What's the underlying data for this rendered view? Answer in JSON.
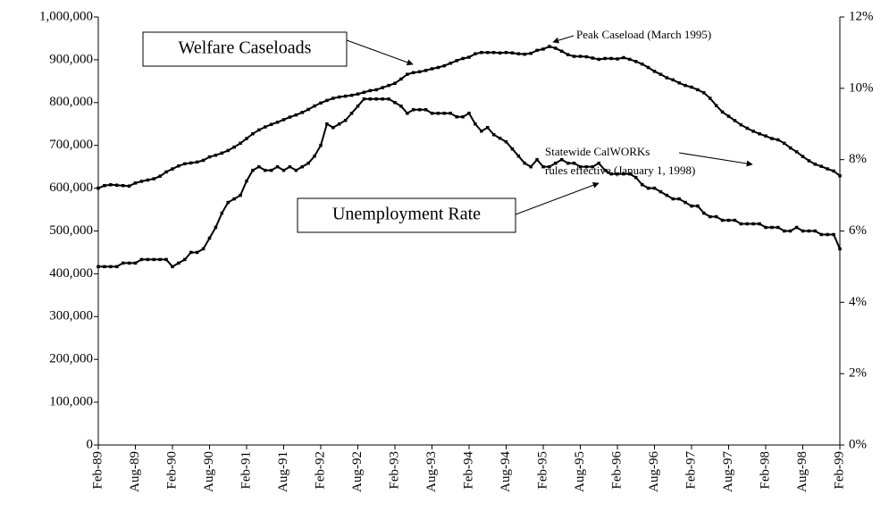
{
  "chart_data": {
    "type": "line",
    "categories": [
      "Feb-89",
      null,
      null,
      null,
      null,
      null,
      "Aug-89",
      null,
      null,
      null,
      null,
      null,
      "Feb-90",
      null,
      null,
      null,
      null,
      null,
      "Aug-90",
      null,
      null,
      null,
      null,
      null,
      "Feb-91",
      null,
      null,
      null,
      null,
      null,
      "Aug-91",
      null,
      null,
      null,
      null,
      null,
      "Feb-92",
      null,
      null,
      null,
      null,
      null,
      "Aug-92",
      null,
      null,
      null,
      null,
      null,
      "Feb-93",
      null,
      null,
      null,
      null,
      null,
      "Aug-93",
      null,
      null,
      null,
      null,
      null,
      "Feb-94",
      null,
      null,
      null,
      null,
      null,
      "Aug-94",
      null,
      null,
      null,
      null,
      null,
      "Feb-95",
      null,
      null,
      null,
      null,
      null,
      "Aug-95",
      null,
      null,
      null,
      null,
      null,
      "Feb-96",
      null,
      null,
      null,
      null,
      null,
      "Aug-96",
      null,
      null,
      null,
      null,
      null,
      "Feb-97",
      null,
      null,
      null,
      null,
      null,
      "Aug-97",
      null,
      null,
      null,
      null,
      null,
      "Feb-98",
      null,
      null,
      null,
      null,
      null,
      "Aug-98",
      null,
      null,
      null,
      null,
      null,
      "Feb-99"
    ],
    "series": [
      {
        "name": "Welfare Caseloads",
        "color": "#000000",
        "values": [
          600000,
          606000,
          608000,
          607000,
          606000,
          605000,
          612000,
          616000,
          619000,
          622000,
          628000,
          638000,
          645000,
          652000,
          657000,
          659000,
          661000,
          665000,
          673000,
          677000,
          682000,
          688000,
          696000,
          705000,
          716000,
          727000,
          736000,
          743000,
          749000,
          754000,
          760000,
          766000,
          771000,
          777000,
          784000,
          792000,
          799000,
          805000,
          810000,
          813000,
          815000,
          817000,
          820000,
          824000,
          828000,
          830000,
          835000,
          840000,
          845000,
          855000,
          866000,
          870000,
          872000,
          875000,
          879000,
          882000,
          886000,
          892000,
          898000,
          903000,
          906000,
          914000,
          917000,
          917000,
          917000,
          916000,
          917000,
          916000,
          914000,
          913000,
          915000,
          922000,
          925000,
          931000,
          927000,
          920000,
          912000,
          908000,
          908000,
          907000,
          904000,
          901000,
          903000,
          903000,
          902000,
          905000,
          901000,
          896000,
          890000,
          882000,
          873000,
          866000,
          858000,
          853000,
          846000,
          840000,
          836000,
          830000,
          823000,
          810000,
          793000,
          778000,
          768000,
          758000,
          748000,
          740000,
          733000,
          727000,
          722000,
          716000,
          713000,
          705000,
          694000,
          685000,
          674000,
          664000,
          656000,
          651000,
          645000,
          640000,
          629000
        ]
      },
      {
        "name": "Unemployment Rate",
        "color": "#000000",
        "axis": "y2",
        "values": [
          5.0,
          5.0,
          5.0,
          5.0,
          5.1,
          5.1,
          5.1,
          5.2,
          5.2,
          5.2,
          5.2,
          5.2,
          5.0,
          5.1,
          5.2,
          5.4,
          5.4,
          5.5,
          5.8,
          6.1,
          6.5,
          6.8,
          6.9,
          7.0,
          7.4,
          7.7,
          7.8,
          7.7,
          7.7,
          7.8,
          7.7,
          7.8,
          7.7,
          7.8,
          7.9,
          8.1,
          8.4,
          9.0,
          8.9,
          9.0,
          9.1,
          9.3,
          9.5,
          9.7,
          9.7,
          9.7,
          9.7,
          9.7,
          9.6,
          9.5,
          9.3,
          9.4,
          9.4,
          9.4,
          9.3,
          9.3,
          9.3,
          9.3,
          9.2,
          9.2,
          9.3,
          9.0,
          8.8,
          8.9,
          8.7,
          8.6,
          8.5,
          8.3,
          8.1,
          7.9,
          7.8,
          8.0,
          7.8,
          7.8,
          7.9,
          8.0,
          7.9,
          7.9,
          7.8,
          7.8,
          7.8,
          7.9,
          7.7,
          7.6,
          7.6,
          7.6,
          7.6,
          7.5,
          7.3,
          7.2,
          7.2,
          7.1,
          7.0,
          6.9,
          6.9,
          6.8,
          6.7,
          6.7,
          6.5,
          6.4,
          6.4,
          6.3,
          6.3,
          6.3,
          6.2,
          6.2,
          6.2,
          6.2,
          6.1,
          6.1,
          6.1,
          6.0,
          6.0,
          6.1,
          6.0,
          6.0,
          6.0,
          5.9,
          5.9,
          5.9,
          5.5
        ]
      }
    ],
    "ylim": [
      0,
      1000000
    ],
    "yticks": [
      0,
      {
        "value": 100000,
        "label": "100,000"
      },
      {
        "value": 200000,
        "label": "200,000"
      },
      {
        "value": 300000,
        "label": "300,000"
      },
      {
        "value": 400000,
        "label": "400,000"
      },
      {
        "value": 500000,
        "label": "500,000"
      },
      {
        "value": 600000,
        "label": "600,000"
      },
      {
        "value": 700000,
        "label": "700,000"
      },
      {
        "value": 800000,
        "label": "800,000"
      },
      {
        "value": 900000,
        "label": "900,000"
      },
      {
        "value": 1000000,
        "label": "1,000,000"
      }
    ],
    "y2lim": [
      0,
      12
    ],
    "y2ticks": [
      {
        "value": 0,
        "label": "0%"
      },
      {
        "value": 2,
        "label": "2%"
      },
      {
        "value": 4,
        "label": "4%"
      },
      {
        "value": 6,
        "label": "6%"
      },
      {
        "value": 8,
        "label": "8%"
      },
      {
        "value": 10,
        "label": "10%"
      },
      {
        "value": 12,
        "label": "12%"
      }
    ],
    "annotations": [
      "Peak Caseload (March 1995)",
      "Statewide CalWORKs",
      "rules effective (January 1, 1998)"
    ]
  }
}
